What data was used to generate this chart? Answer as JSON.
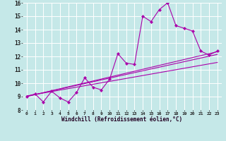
{
  "xlabel": "Windchill (Refroidissement éolien,°C)",
  "xlim": [
    -0.5,
    23.5
  ],
  "ylim": [
    8,
    16
  ],
  "xticks": [
    0,
    1,
    2,
    3,
    4,
    5,
    6,
    7,
    8,
    9,
    10,
    11,
    12,
    13,
    14,
    15,
    16,
    17,
    18,
    19,
    20,
    21,
    22,
    23
  ],
  "yticks": [
    8,
    9,
    10,
    11,
    12,
    13,
    14,
    15,
    16
  ],
  "bg_color": "#c5e8e8",
  "line_color": "#aa00aa",
  "grid_color": "#ffffff",
  "main_series_x": [
    0,
    1,
    2,
    3,
    4,
    5,
    6,
    7,
    8,
    9,
    10,
    11,
    12,
    13,
    14,
    15,
    16,
    17,
    18,
    19,
    20,
    21,
    22,
    23
  ],
  "main_series_y": [
    9.0,
    9.2,
    8.6,
    9.4,
    8.9,
    8.6,
    9.3,
    10.4,
    9.7,
    9.5,
    10.3,
    12.2,
    11.5,
    11.4,
    15.0,
    14.6,
    15.5,
    16.0,
    14.3,
    14.1,
    13.9,
    12.4,
    12.1,
    12.4
  ],
  "trend_lines": [
    {
      "x": [
        0,
        23
      ],
      "y": [
        9.0,
        12.35
      ]
    },
    {
      "x": [
        0,
        23
      ],
      "y": [
        9.05,
        11.55
      ]
    },
    {
      "x": [
        0,
        23
      ],
      "y": [
        9.02,
        12.15
      ]
    }
  ],
  "xlabel_fontsize": 5.5,
  "tick_fontsize": 5.0,
  "marker_size": 2.2,
  "linewidth": 0.8
}
